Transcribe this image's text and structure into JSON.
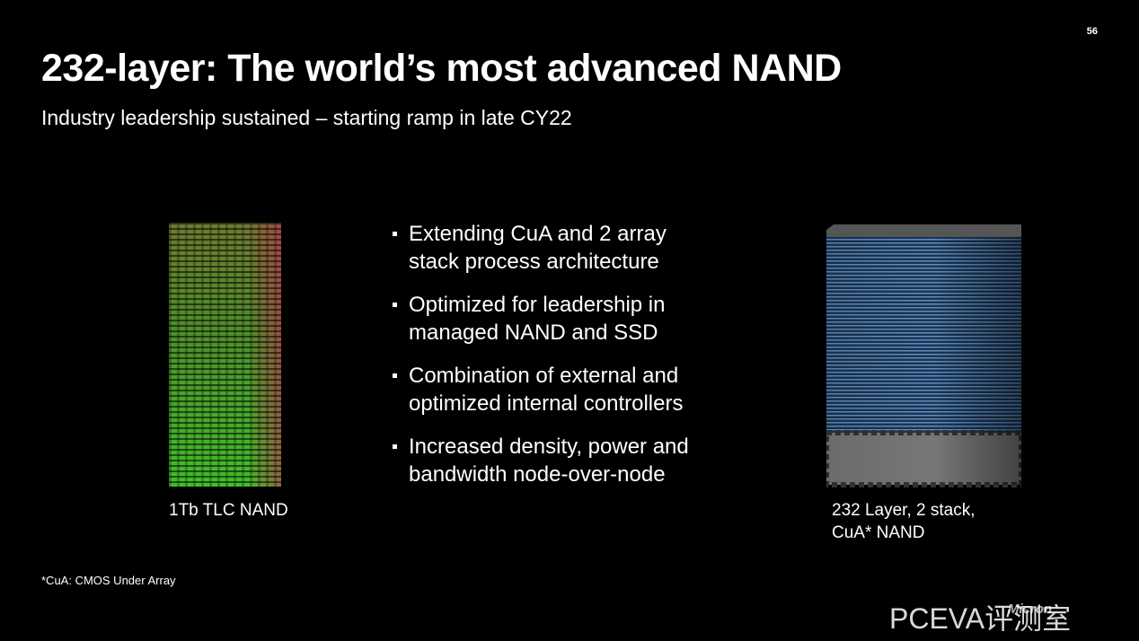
{
  "page_number": "56",
  "title": "232-layer: The world’s most advanced NAND",
  "subtitle": "Industry leadership sustained – starting ramp in late CY22",
  "bullets": [
    "Extending CuA and 2 array stack process architecture",
    "Optimized for leadership in managed NAND and SSD",
    "Combination of external and optimized internal controllers",
    "Increased density, power and bandwidth node-over-node"
  ],
  "left_caption": "1Tb TLC NAND",
  "right_caption": [
    "232 Layer, 2 stack,",
    "CuA* NAND"
  ],
  "footnote": "*CuA: CMOS Under Array",
  "watermark": "PCEVA评测室",
  "watermark_logo": "Micron"
}
